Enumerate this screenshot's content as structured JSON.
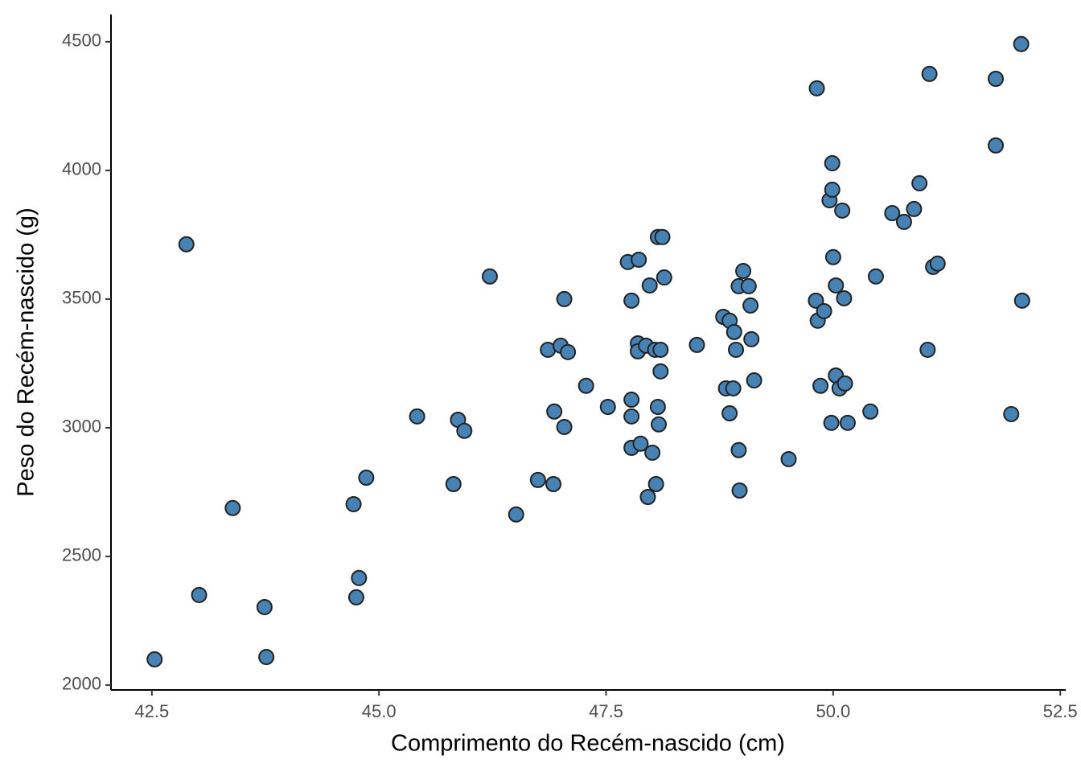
{
  "chart_data": {
    "type": "scatter",
    "x_label": "Comprimento do Recém-nascido (cm)",
    "y_label": "Peso do Recém-nascido (g)",
    "color": "#4682b4",
    "xlim": [
      42.05,
      52.56
    ],
    "ylim": [
      1981,
      4606
    ],
    "xticks": [
      42.5,
      {
        "value": 45,
        "label": "45.0"
      },
      47.5,
      {
        "value": 50,
        "label": "50.0"
      },
      52.5
    ],
    "yticks": [
      2000,
      2500,
      3000,
      3500,
      4000,
      4500
    ],
    "x": [
      42.53,
      42.88,
      43.02,
      43.39,
      43.74,
      43.76,
      44.72,
      44.75,
      44.78,
      44.86,
      45.42,
      45.82,
      45.87,
      45.94,
      46.22,
      46.51,
      46.75,
      46.86,
      46.92,
      46.93,
      47.0,
      47.04,
      47.04,
      47.08,
      47.28,
      47.52,
      47.74,
      47.78,
      47.78,
      47.78,
      47.78,
      47.86,
      47.85,
      47.85,
      47.88,
      47.94,
      47.96,
      47.98,
      48.01,
      48.05,
      48.07,
      48.12,
      48.07,
      48.08,
      48.04,
      48.1,
      48.1,
      48.14,
      48.5,
      48.79,
      48.82,
      48.86,
      48.86,
      48.9,
      48.91,
      48.93,
      48.96,
      48.96,
      48.97,
      49.01,
      49.07,
      49.09,
      49.1,
      49.13,
      49.51,
      49.81,
      49.82,
      49.83,
      49.86,
      49.9,
      49.96,
      49.98,
      49.99,
      49.99,
      50.0,
      50.03,
      50.03,
      50.07,
      50.1,
      50.12,
      50.13,
      50.16,
      50.41,
      50.47,
      50.65,
      50.78,
      50.89,
      50.95,
      51.04,
      51.06,
      51.1,
      51.15,
      51.79,
      51.79,
      51.96,
      52.07,
      52.08
    ],
    "y": [
      2100,
      3713,
      2350,
      2688,
      2303,
      2109,
      2703,
      2341,
      2416,
      2806,
      3044,
      2781,
      3031,
      2988,
      3588,
      2663,
      2797,
      3303,
      2781,
      3063,
      3319,
      3500,
      3003,
      3294,
      3163,
      3081,
      3644,
      3494,
      3109,
      3044,
      2922,
      3653,
      3328,
      3297,
      2938,
      3319,
      2731,
      3553,
      2903,
      2781,
      3741,
      3741,
      3081,
      3013,
      3303,
      3303,
      3219,
      3584,
      3322,
      3431,
      3153,
      3416,
      3056,
      3153,
      3372,
      3303,
      3550,
      2913,
      2756,
      3609,
      3550,
      3475,
      3344,
      3184,
      2878,
      3494,
      4319,
      3416,
      3163,
      3453,
      3884,
      3019,
      4028,
      3925,
      3663,
      3203,
      3553,
      3153,
      3844,
      3503,
      3172,
      3019,
      3063,
      3588,
      3834,
      3800,
      3850,
      3950,
      3303,
      4375,
      3625,
      3638,
      4356,
      4097,
      3053,
      4491,
      3494
    ]
  }
}
